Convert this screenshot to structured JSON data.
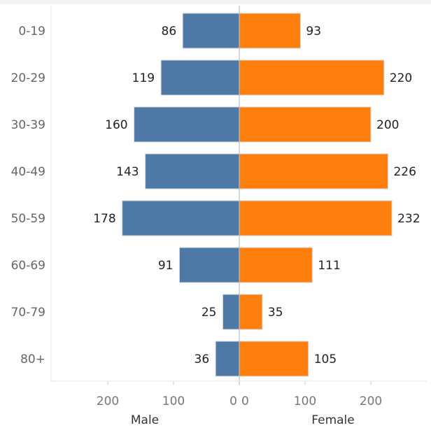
{
  "chart_data": {
    "type": "bar",
    "orientation": "horizontal-butterfly",
    "categories": [
      "0-19",
      "20-29",
      "30-39",
      "40-49",
      "50-59",
      "60-69",
      "70-79",
      "80+"
    ],
    "series": [
      {
        "name": "Male",
        "values": [
          86,
          119,
          160,
          143,
          178,
          91,
          25,
          36
        ],
        "color": "#4e79a7"
      },
      {
        "name": "Female",
        "values": [
          93,
          220,
          200,
          226,
          232,
          111,
          35,
          105
        ],
        "color": "#ff7f0e"
      }
    ],
    "xlim": [
      0,
      287
    ],
    "xticks": [
      0,
      100,
      200
    ],
    "xlabel_left": "Male",
    "xlabel_right": "Female",
    "title": "",
    "grid": false
  }
}
